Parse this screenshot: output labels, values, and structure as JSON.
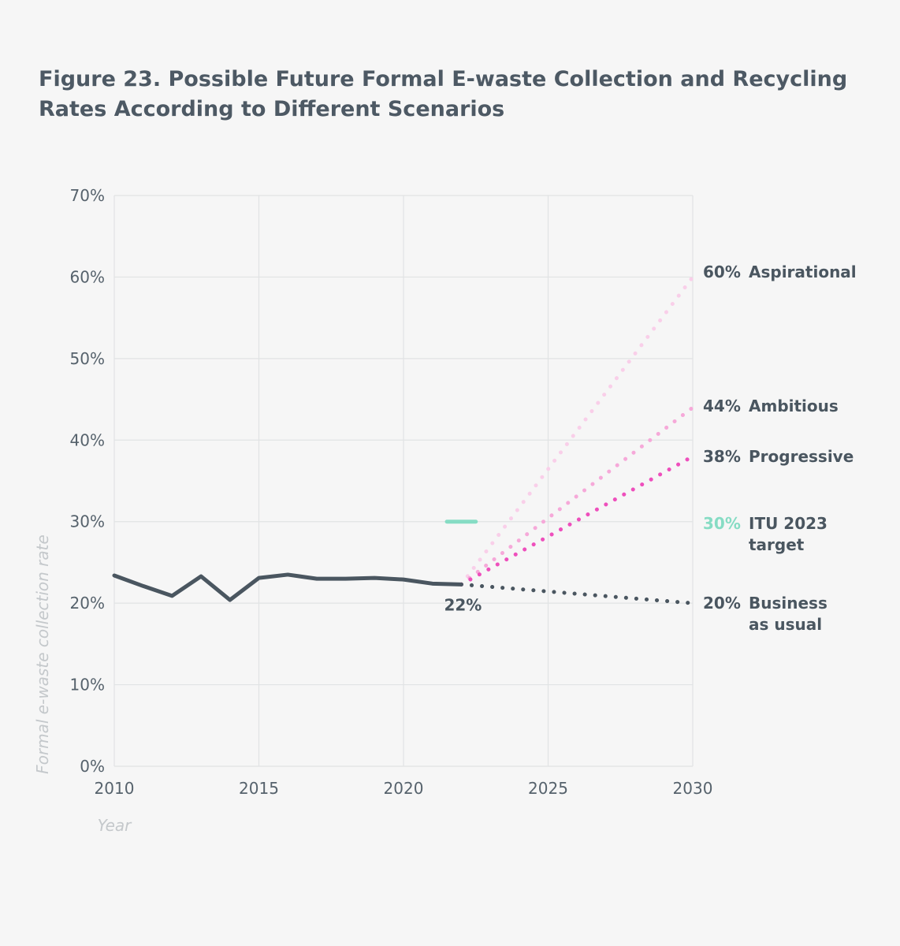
{
  "title": "Figure 23. Possible Future Formal E-waste Collection and Recycling Rates According to Different Scenarios",
  "chart_data": {
    "type": "line",
    "xlabel": "Year",
    "ylabel": "Formal e-waste collection rate",
    "xlim": [
      2010,
      2030
    ],
    "ylim": [
      0,
      70
    ],
    "x_ticks": [
      "2010",
      "2015",
      "2020",
      "2025",
      "2030"
    ],
    "y_ticks": [
      "0%",
      "10%",
      "20%",
      "30%",
      "40%",
      "50%",
      "60%",
      "70%"
    ],
    "grid": true,
    "historical": {
      "x": [
        2010,
        2011,
        2012,
        2013,
        2014,
        2015,
        2016,
        2017,
        2018,
        2019,
        2020,
        2021,
        2022
      ],
      "y": [
        23.4,
        22.1,
        20.9,
        23.3,
        20.4,
        23.1,
        23.5,
        23.0,
        23.0,
        23.1,
        22.9,
        22.4,
        22.3
      ],
      "color": "#4a5660",
      "end_label": "22%"
    },
    "scenarios": [
      {
        "value_label": "60%",
        "name": "Aspirational",
        "x": [
          2022,
          2030
        ],
        "y": [
          22.3,
          60
        ],
        "color": "#f9cfe9"
      },
      {
        "value_label": "44%",
        "name": "Ambitious",
        "x": [
          2022,
          2030
        ],
        "y": [
          22.3,
          44
        ],
        "color": "#f6a9d9"
      },
      {
        "value_label": "38%",
        "name": "Progressive",
        "x": [
          2022,
          2030
        ],
        "y": [
          22.3,
          38
        ],
        "color": "#ee4fbc"
      },
      {
        "value_label": "20%",
        "name": "Business",
        "name_line2": "as usual",
        "x": [
          2022,
          2030
        ],
        "y": [
          22.3,
          20
        ],
        "color": "#4a5660"
      }
    ],
    "target": {
      "value_label": "30%",
      "name": "ITU 2023",
      "name_line2": "target",
      "x": [
        2021.5,
        2022.5
      ],
      "y": 30,
      "color": "#86dcc4"
    }
  }
}
